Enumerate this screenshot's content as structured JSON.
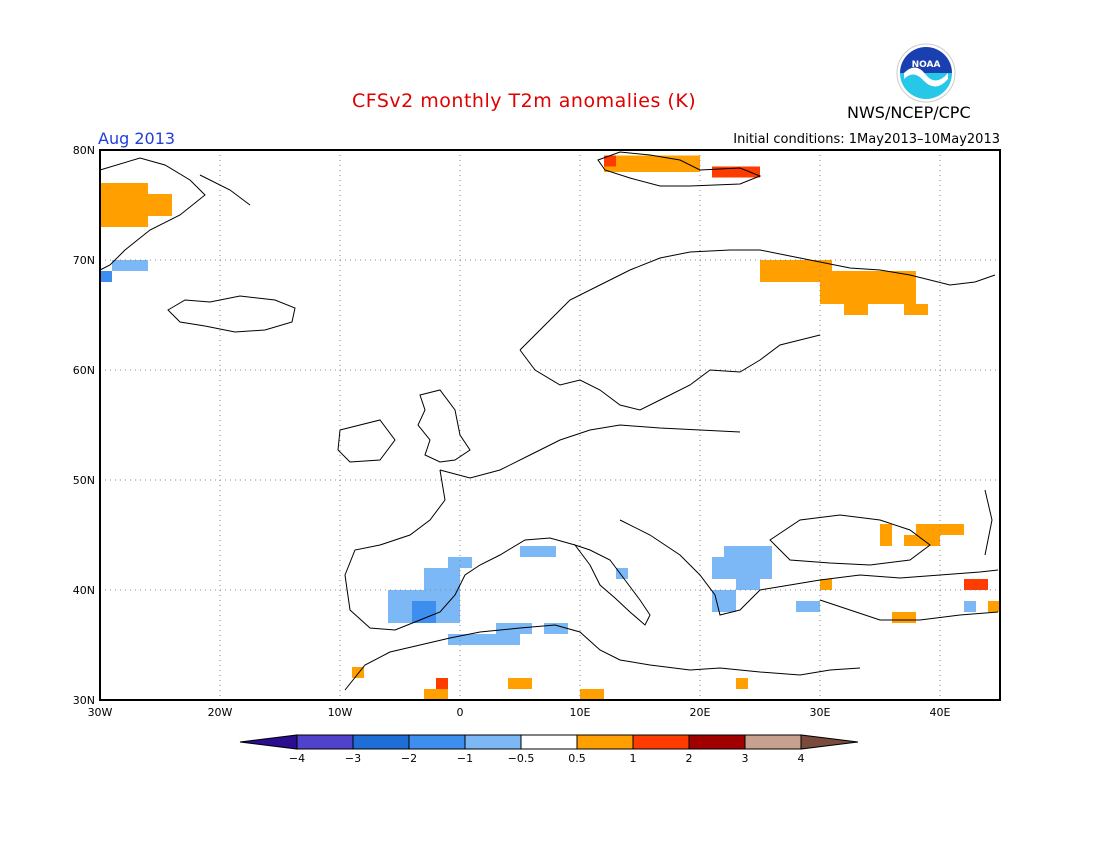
{
  "title": "CFSv2 monthly T2m anomalies (K)",
  "valid_month": "Aug 2013",
  "initial_conditions": "Initial conditions: 1May2013–10May2013",
  "agency": "NWS/NCEP/CPC",
  "logo_text": "NOAA",
  "map": {
    "region": "Europe",
    "lon_range": [
      -30,
      45
    ],
    "lat_range": [
      30,
      80
    ],
    "grid": true,
    "lon_ticks": [
      "30W",
      "20W",
      "10W",
      "0",
      "10E",
      "20E",
      "30E",
      "40E"
    ],
    "lat_ticks": [
      "80N",
      "70N",
      "60N",
      "50N",
      "40N",
      "30N"
    ]
  },
  "colorbar": {
    "labels": [
      "−4",
      "−3",
      "−2",
      "−1",
      "−0.5",
      "0.5",
      "1",
      "2",
      "3",
      "4"
    ],
    "colors": [
      "#2b0e8f",
      "#5042cc",
      "#1f6ed8",
      "#3e8ef0",
      "#7cb8f5",
      "#ffffff",
      "#ffa000",
      "#ff3c00",
      "#a00000",
      "#c8a090",
      "#7a4b3a"
    ]
  },
  "anomalies": {
    "cell_deg": 1,
    "cells": [
      {
        "lon": -30,
        "lat": 73,
        "w": 4,
        "h": 4,
        "c": "#ffa000"
      },
      {
        "lon": -26,
        "lat": 74,
        "w": 2,
        "h": 2,
        "c": "#ffa000"
      },
      {
        "lon": -29,
        "lat": 69,
        "w": 3,
        "h": 1,
        "c": "#7cb8f5"
      },
      {
        "lon": -30,
        "lat": 68,
        "w": 1,
        "h": 1,
        "c": "#3e8ef0"
      },
      {
        "lon": 12,
        "lat": 78,
        "w": 8,
        "h": 1.5,
        "c": "#ffa000"
      },
      {
        "lon": 12,
        "lat": 78.5,
        "w": 1,
        "h": 1,
        "c": "#ff3c00"
      },
      {
        "lon": 21,
        "lat": 77.5,
        "w": 4,
        "h": 1,
        "c": "#ff3c00"
      },
      {
        "lon": 25,
        "lat": 68,
        "w": 6,
        "h": 2,
        "c": "#ffa000"
      },
      {
        "lon": 30,
        "lat": 66,
        "w": 8,
        "h": 3,
        "c": "#ffa000"
      },
      {
        "lon": 37,
        "lat": 65,
        "w": 2,
        "h": 1,
        "c": "#ffa000"
      },
      {
        "lon": 32,
        "lat": 65,
        "w": 2,
        "h": 1,
        "c": "#ffa000"
      },
      {
        "lon": -6,
        "lat": 37,
        "w": 6,
        "h": 3,
        "c": "#7cb8f5"
      },
      {
        "lon": -3,
        "lat": 40,
        "w": 3,
        "h": 2,
        "c": "#7cb8f5"
      },
      {
        "lon": -1,
        "lat": 42,
        "w": 2,
        "h": 1,
        "c": "#7cb8f5"
      },
      {
        "lon": -4,
        "lat": 37,
        "w": 2,
        "h": 2,
        "c": "#3e8ef0"
      },
      {
        "lon": -1,
        "lat": 35,
        "w": 6,
        "h": 1,
        "c": "#7cb8f5"
      },
      {
        "lon": 3,
        "lat": 36,
        "w": 3,
        "h": 1,
        "c": "#7cb8f5"
      },
      {
        "lon": 7,
        "lat": 36,
        "w": 2,
        "h": 1,
        "c": "#7cb8f5"
      },
      {
        "lon": 5,
        "lat": 43,
        "w": 3,
        "h": 1,
        "c": "#7cb8f5"
      },
      {
        "lon": 13,
        "lat": 41,
        "w": 1,
        "h": 1,
        "c": "#7cb8f5"
      },
      {
        "lon": 21,
        "lat": 41,
        "w": 5,
        "h": 2,
        "c": "#7cb8f5"
      },
      {
        "lon": 22,
        "lat": 43,
        "w": 4,
        "h": 1,
        "c": "#7cb8f5"
      },
      {
        "lon": 23,
        "lat": 40,
        "w": 2,
        "h": 1,
        "c": "#7cb8f5"
      },
      {
        "lon": 21,
        "lat": 38,
        "w": 2,
        "h": 2,
        "c": "#7cb8f5"
      },
      {
        "lon": 28,
        "lat": 38,
        "w": 2,
        "h": 1,
        "c": "#7cb8f5"
      },
      {
        "lon": 42,
        "lat": 38,
        "w": 1,
        "h": 1,
        "c": "#7cb8f5"
      },
      {
        "lon": 38,
        "lat": 45,
        "w": 4,
        "h": 1,
        "c": "#ffa000"
      },
      {
        "lon": 37,
        "lat": 44,
        "w": 3,
        "h": 1,
        "c": "#ffa000"
      },
      {
        "lon": 35,
        "lat": 44,
        "w": 1,
        "h": 2,
        "c": "#ffa000"
      },
      {
        "lon": 42,
        "lat": 40,
        "w": 2,
        "h": 1,
        "c": "#ff3c00"
      },
      {
        "lon": 36,
        "lat": 37,
        "w": 2,
        "h": 1,
        "c": "#ffa000"
      },
      {
        "lon": 30,
        "lat": 40,
        "w": 1,
        "h": 1,
        "c": "#ffa000"
      },
      {
        "lon": 44,
        "lat": 38,
        "w": 1,
        "h": 1,
        "c": "#ffa000"
      },
      {
        "lon": -9,
        "lat": 32,
        "w": 1,
        "h": 1,
        "c": "#ffa000"
      },
      {
        "lon": -3,
        "lat": 30,
        "w": 2,
        "h": 1,
        "c": "#ffa000"
      },
      {
        "lon": -2,
        "lat": 31,
        "w": 1,
        "h": 1,
        "c": "#ff3c00"
      },
      {
        "lon": 4,
        "lat": 31,
        "w": 2,
        "h": 1,
        "c": "#ffa000"
      },
      {
        "lon": 10,
        "lat": 30,
        "w": 2,
        "h": 1,
        "c": "#ffa000"
      },
      {
        "lon": 23,
        "lat": 31,
        "w": 1,
        "h": 1,
        "c": "#ffa000"
      }
    ]
  }
}
